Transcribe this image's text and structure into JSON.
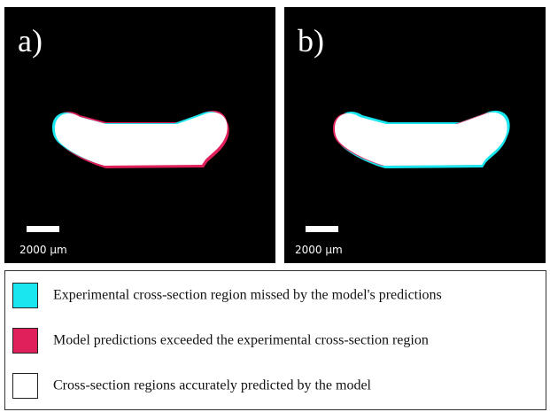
{
  "panels": [
    {
      "label": "a)",
      "scale_bar": "2000 µm"
    },
    {
      "label": "b)",
      "scale_bar": "2000 µm"
    }
  ],
  "legend": [
    {
      "label": "Experimental cross-section region missed by the model's predictions",
      "color": "#19e6ee"
    },
    {
      "label": "Model predictions exceeded the experimental cross-section region",
      "color": "#e0205a"
    },
    {
      "label": "Cross-section regions accurately predicted by the model",
      "color": "#ffffff"
    }
  ]
}
